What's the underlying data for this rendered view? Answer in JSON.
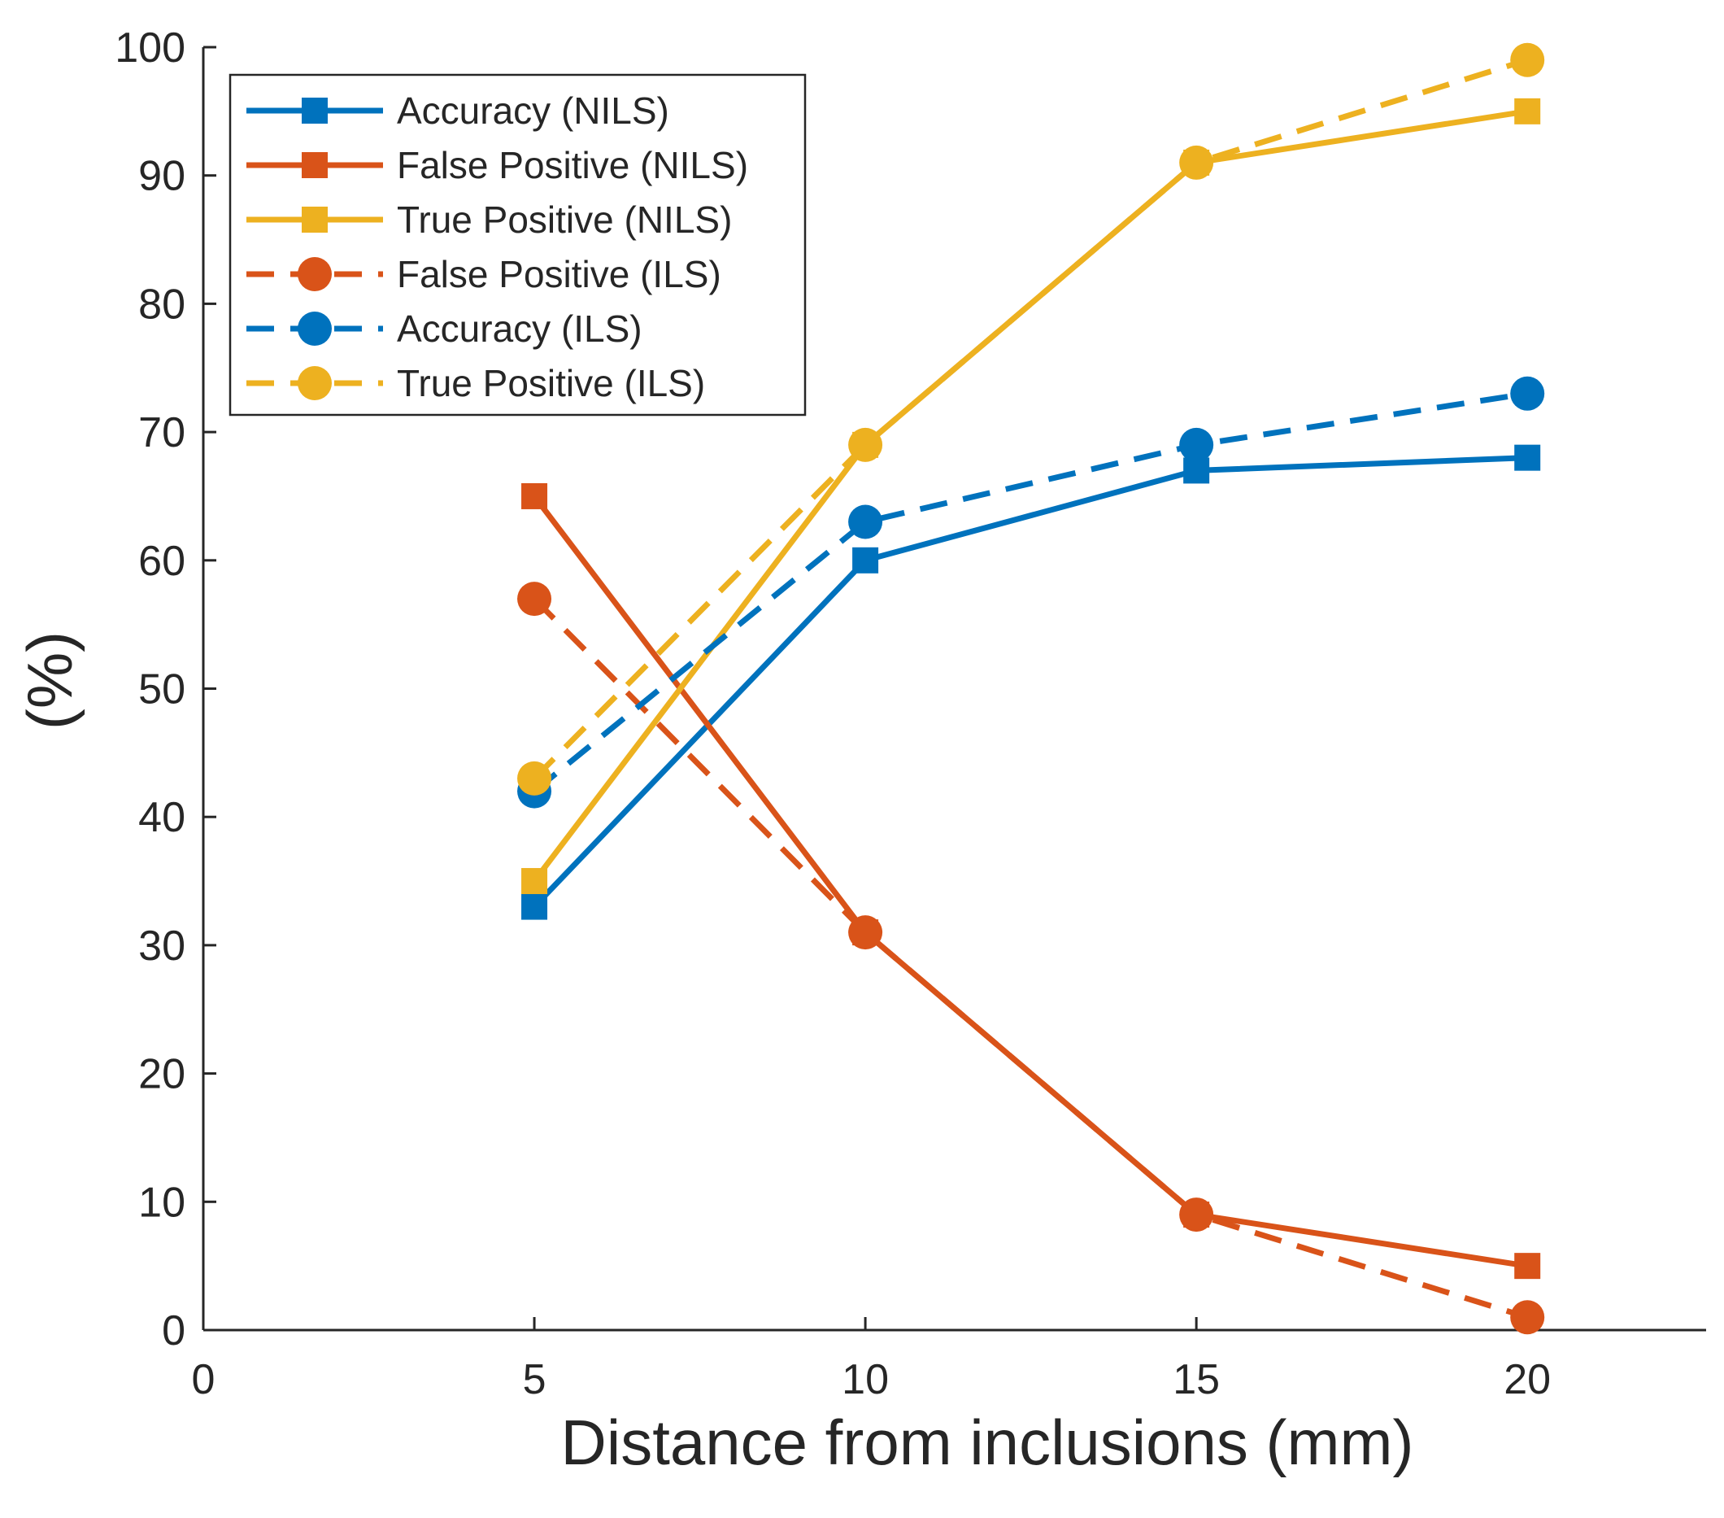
{
  "chart_data": {
    "type": "line",
    "title": "",
    "xlabel": "Distance from inclusions (mm)",
    "ylabel": "(%)",
    "xlim": [
      0,
      22.7
    ],
    "ylim": [
      0,
      100
    ],
    "xticks": [
      "0",
      "5",
      "10",
      "15",
      "20"
    ],
    "yticks": [
      "0",
      "10",
      "20",
      "30",
      "40",
      "50",
      "60",
      "70",
      "80",
      "90",
      "100"
    ],
    "x": [
      5,
      10,
      15,
      20
    ],
    "grid": false,
    "legend_position": "top-left",
    "series": [
      {
        "name": "Accuracy (NILS)",
        "values": [
          33,
          60,
          67,
          68
        ],
        "color": "#0072BD",
        "line": "solid",
        "marker": "square"
      },
      {
        "name": "False Positive (NILS)",
        "values": [
          65,
          31,
          9,
          5
        ],
        "color": "#D95319",
        "line": "solid",
        "marker": "square"
      },
      {
        "name": "True Positive (NILS)",
        "values": [
          35,
          69,
          91,
          95
        ],
        "color": "#EDB120",
        "line": "solid",
        "marker": "square"
      },
      {
        "name": "False Positive (ILS)",
        "values": [
          57,
          31,
          9,
          1
        ],
        "color": "#D95319",
        "line": "dashed",
        "marker": "circle"
      },
      {
        "name": "Accuracy (ILS)",
        "values": [
          42,
          63,
          69,
          73
        ],
        "color": "#0072BD",
        "line": "dashed",
        "marker": "circle"
      },
      {
        "name": "True Positive (ILS)",
        "values": [
          43,
          69,
          91,
          99
        ],
        "color": "#EDB120",
        "line": "dashed",
        "marker": "circle"
      }
    ]
  }
}
